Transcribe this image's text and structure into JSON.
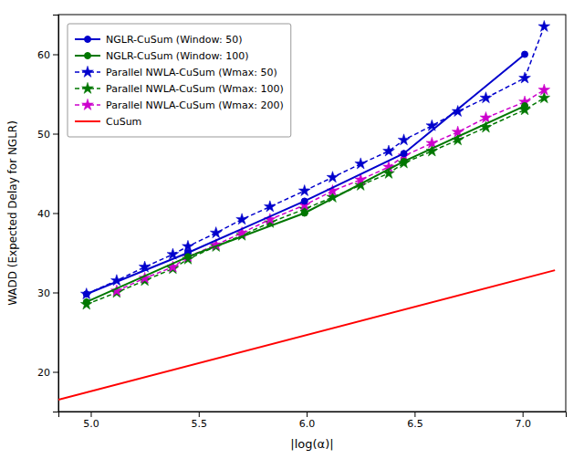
{
  "chart_data": {
    "type": "line",
    "xlabel": "|log(α)|",
    "ylabel": "WADD (Expected Delay for NGLR)",
    "xlim": [
      4.85,
      7.2
    ],
    "ylim": [
      15,
      65
    ],
    "xticks": [
      {
        "value": 5.0,
        "label": "5.0"
      },
      {
        "value": 5.5,
        "label": "5.5"
      },
      {
        "value": 6.0,
        "label": "6.0"
      },
      {
        "value": 6.5,
        "label": "6.5"
      },
      {
        "value": 7.0,
        "label": "7.0"
      }
    ],
    "yticks": [
      20,
      30,
      40,
      50,
      60
    ],
    "grid": false,
    "legend": "upper left",
    "series": [
      {
        "name": "NGLR-CuSum (Window: 50)",
        "color": "#0000cc",
        "marker": "circle",
        "line_style": "solid",
        "x": [
          4.98,
          5.45,
          5.99,
          6.45,
          7.01
        ],
        "values": [
          29.8,
          35.0,
          41.5,
          47.5,
          60.0
        ]
      },
      {
        "name": "NGLR-CuSum (Window: 100)",
        "color": "#007700",
        "marker": "circle",
        "line_style": "solid",
        "x": [
          4.98,
          5.45,
          5.99,
          6.45,
          7.01
        ],
        "values": [
          28.8,
          34.5,
          40.0,
          46.5,
          53.5
        ]
      },
      {
        "name": "Parallel NWLA-CuSum (Wmax: 50)",
        "color": "#0000cc",
        "marker": "star",
        "line_style": "dashed",
        "x": [
          4.98,
          5.12,
          5.25,
          5.38,
          5.45,
          5.58,
          5.7,
          5.83,
          5.99,
          6.12,
          6.25,
          6.38,
          6.45,
          6.58,
          6.7,
          6.83,
          7.01,
          7.1
        ],
        "values": [
          29.8,
          31.5,
          33.2,
          34.8,
          35.8,
          37.5,
          39.2,
          40.8,
          42.8,
          44.5,
          46.2,
          47.8,
          49.2,
          51.0,
          52.8,
          54.5,
          57.0,
          63.5
        ]
      },
      {
        "name": "Parallel NWLA-CuSum (Wmax: 100)",
        "color": "#007700",
        "marker": "star",
        "line_style": "dashed",
        "x": [
          4.98,
          5.12,
          5.25,
          5.38,
          5.45,
          5.58,
          5.7,
          5.83,
          5.99,
          6.12,
          6.25,
          6.38,
          6.45,
          6.58,
          6.7,
          6.83,
          7.01,
          7.1
        ],
        "values": [
          28.5,
          30.0,
          31.5,
          33.0,
          34.2,
          35.8,
          37.2,
          38.8,
          40.5,
          42.0,
          43.5,
          45.0,
          46.3,
          47.8,
          49.2,
          50.8,
          53.0,
          54.5
        ]
      },
      {
        "name": "Parallel NWLA-CuSum (Wmax: 200)",
        "color": "#cc00cc",
        "marker": "star",
        "line_style": "dashed",
        "x": [
          5.12,
          5.25,
          5.38,
          5.45,
          5.58,
          5.7,
          5.83,
          5.99,
          6.12,
          6.25,
          6.38,
          6.45,
          6.58,
          6.7,
          6.83,
          7.01,
          7.1
        ],
        "values": [
          30.2,
          31.8,
          33.2,
          34.5,
          36.0,
          37.5,
          39.2,
          41.0,
          42.8,
          44.2,
          45.8,
          47.2,
          48.8,
          50.2,
          52.0,
          54.0,
          55.5
        ]
      },
      {
        "name": "CuSum",
        "color": "#ff0000",
        "line_style": "solid",
        "x": [
          4.85,
          7.15
        ],
        "values": [
          16.5,
          32.8
        ]
      }
    ]
  }
}
